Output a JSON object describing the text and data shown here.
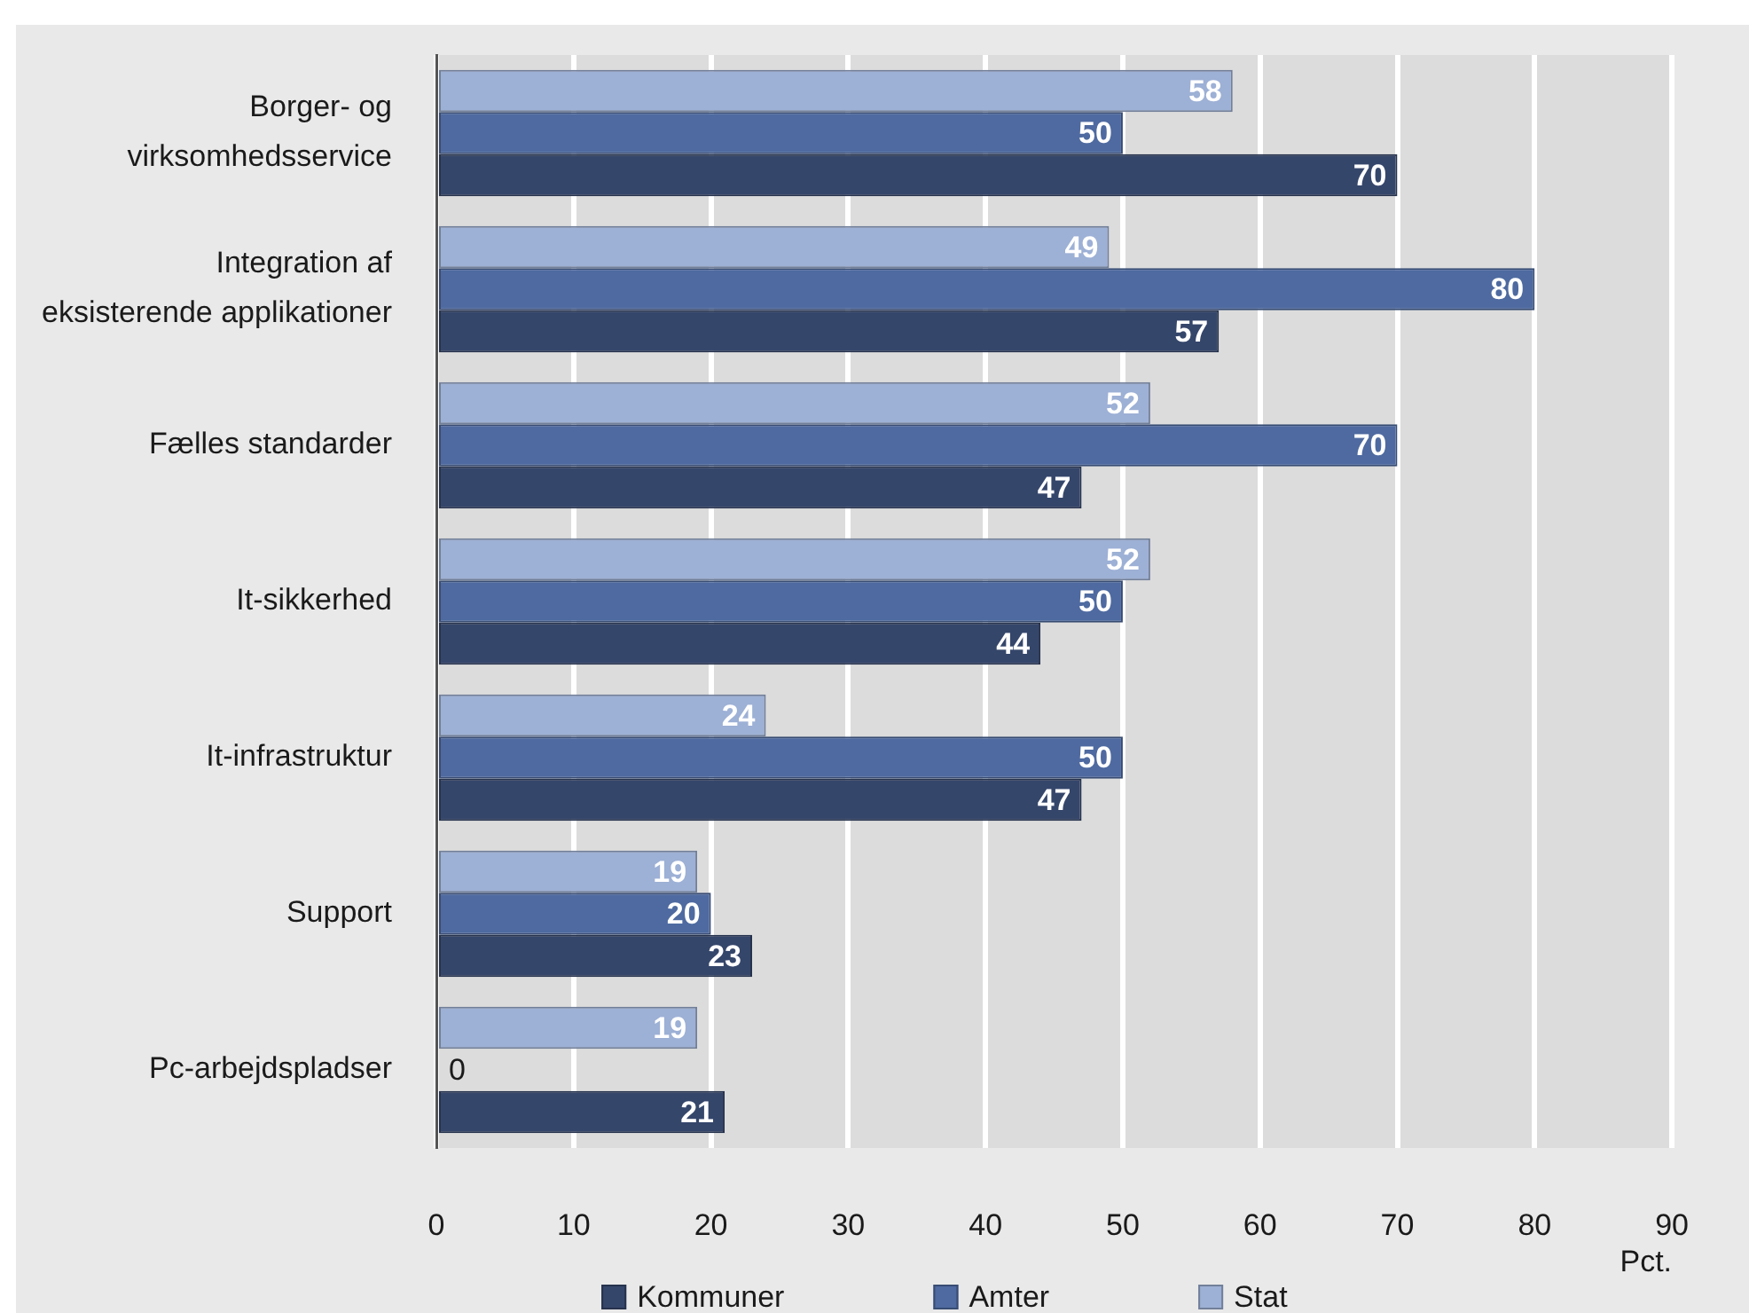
{
  "chart_data": {
    "type": "bar",
    "orientation": "horizontal",
    "categories": [
      "Borger- og virksomhedsservice",
      "Integration af eksisterende applikationer",
      "Fælles standarder",
      "It-sikkerhed",
      "It-infrastruktur",
      "Support",
      "Pc-arbejdspladser"
    ],
    "series": [
      {
        "name": "Kommuner",
        "color": "#35466b",
        "values": [
          70,
          57,
          47,
          44,
          47,
          23,
          21
        ]
      },
      {
        "name": "Amter",
        "color": "#4e6aa0",
        "values": [
          50,
          80,
          70,
          50,
          50,
          20,
          0
        ]
      },
      {
        "name": "Stat",
        "color": "#9db0d5",
        "values": [
          58,
          49,
          52,
          52,
          24,
          19,
          19
        ]
      }
    ],
    "xlabel": "Pct.",
    "xlim": [
      0,
      90
    ],
    "xticks": [
      0,
      10,
      20,
      30,
      40,
      50,
      60,
      70,
      80,
      90
    ],
    "grid": "x",
    "legend": "bottom",
    "data_labels": true
  }
}
